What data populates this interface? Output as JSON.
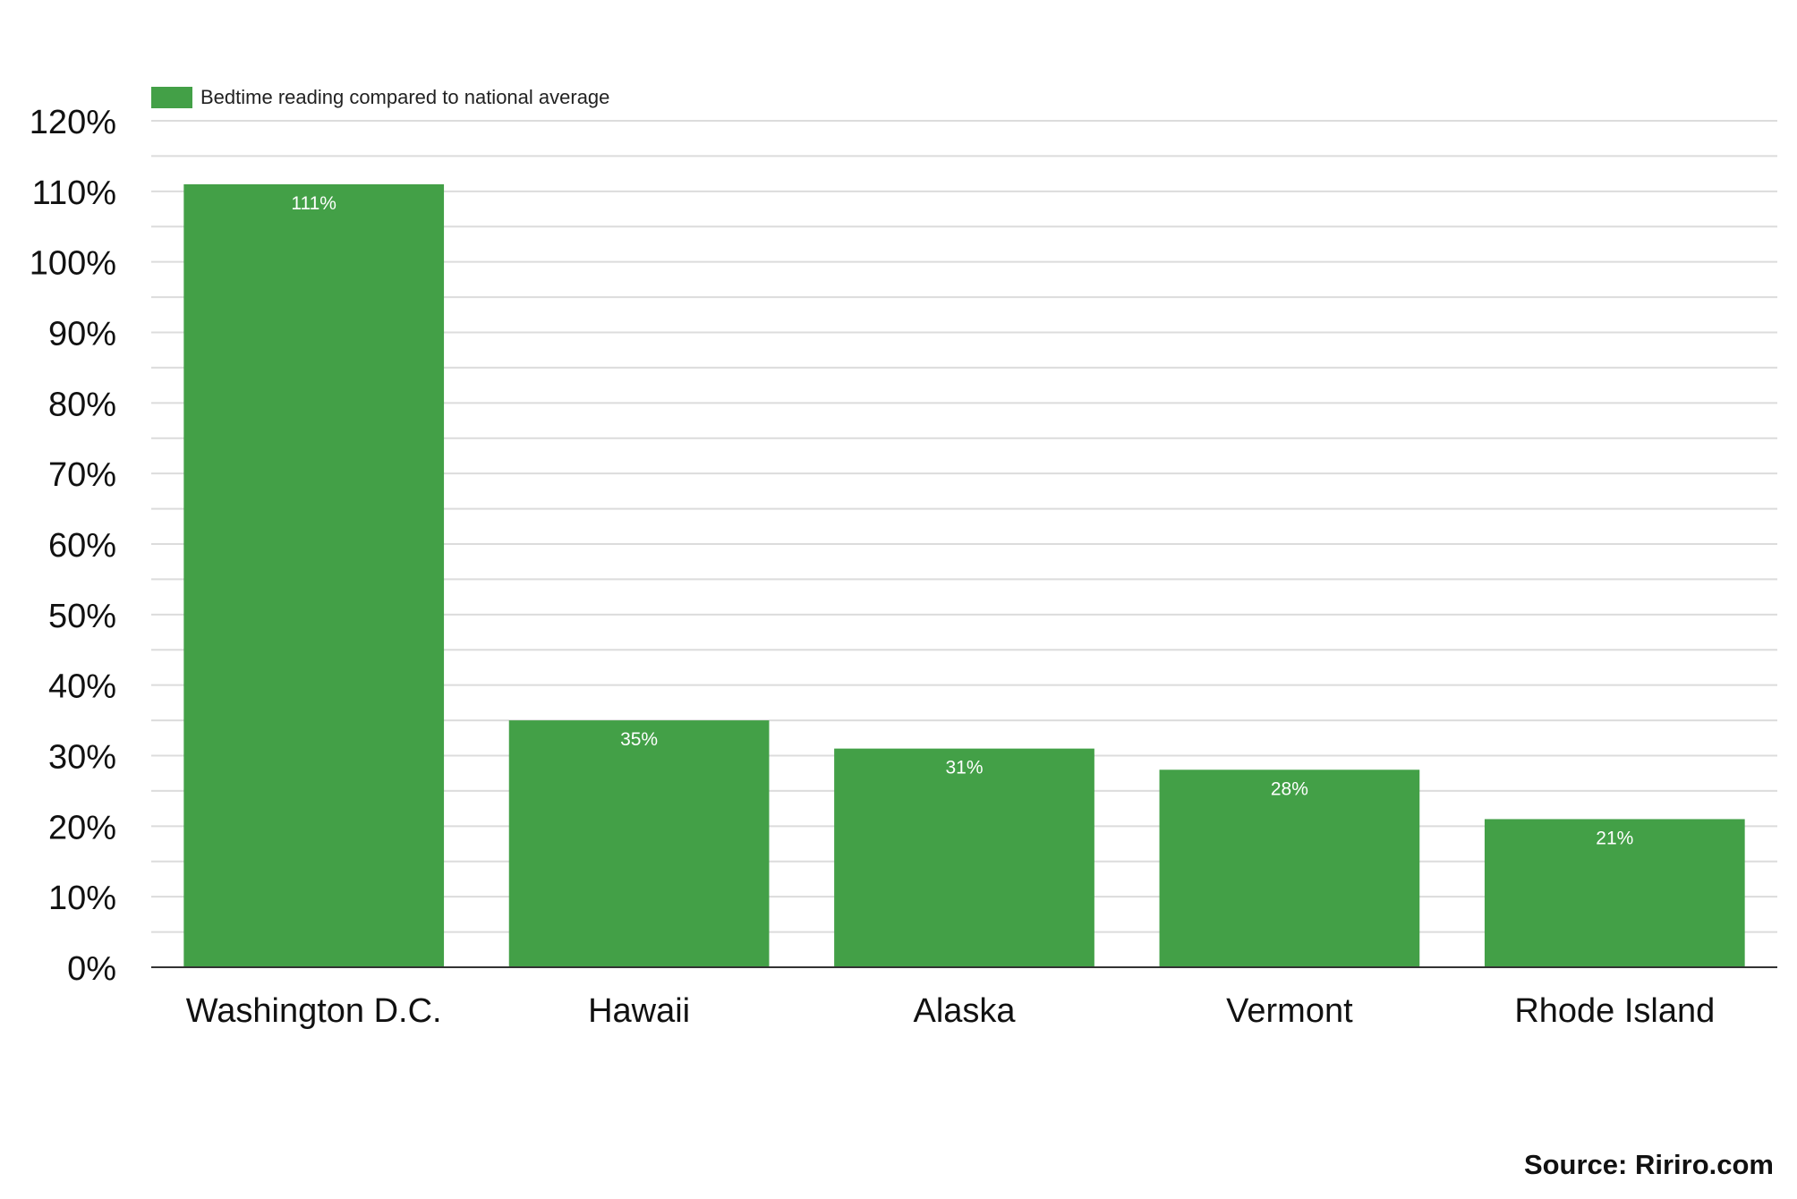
{
  "colors": {
    "bar": "#43a047",
    "grid": "#dcdcdc",
    "axis": "#333333",
    "tick_text": "#111111",
    "data_label": "#ffffff"
  },
  "chart_data": {
    "type": "bar",
    "categories": [
      "Washington D.C.",
      "Hawaii",
      "Alaska",
      "Vermont",
      "Rhode Island"
    ],
    "series": [
      {
        "name": "Bedtime reading compared to national average",
        "values": [
          111,
          35,
          31,
          28,
          21
        ]
      }
    ],
    "data_labels": [
      "111%",
      "35%",
      "31%",
      "28%",
      "21%"
    ],
    "y_ticks": [
      0,
      10,
      20,
      30,
      40,
      50,
      60,
      70,
      80,
      90,
      100,
      110,
      120
    ],
    "y_tick_labels": [
      "0%",
      "10%",
      "20%",
      "30%",
      "40%",
      "50%",
      "60%",
      "70%",
      "80%",
      "90%",
      "100%",
      "110%",
      "120%"
    ],
    "ylim": [
      0,
      120
    ],
    "y_unit": "%",
    "grid": true,
    "legend_position": "top-left",
    "title": "",
    "xlabel": "",
    "ylabel": ""
  },
  "source": "Source: Ririro.com"
}
